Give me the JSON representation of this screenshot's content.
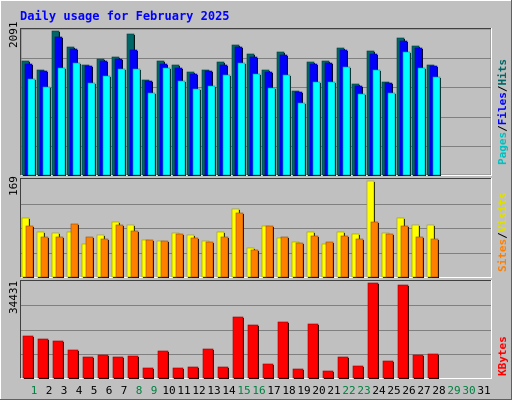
{
  "chart_data": [
    {
      "type": "bar",
      "title": "Daily usage for February 2025",
      "panel": "top",
      "ymax_label": "2091",
      "ylim": [
        0,
        2091
      ],
      "categories": [
        "1",
        "2",
        "3",
        "4",
        "5",
        "6",
        "7",
        "8",
        "9",
        "10",
        "11",
        "12",
        "13",
        "14",
        "15",
        "16",
        "17",
        "18",
        "19",
        "20",
        "21",
        "22",
        "23",
        "24",
        "25",
        "26",
        "27",
        "28",
        "29",
        "30",
        "31"
      ],
      "series": [
        {
          "name": "Hits",
          "color": "#006666",
          "values": [
            1655,
            1525,
            2091,
            1860,
            1600,
            1690,
            1710,
            2045,
            1380,
            1655,
            1600,
            1500,
            1530,
            1640,
            1890,
            1760,
            1520,
            1780,
            1215,
            1640,
            1655,
            1840,
            1320,
            1800,
            1350,
            1995,
            1880,
            1600,
            null,
            null,
            null
          ]
        },
        {
          "name": "Files",
          "color": "#0000ff",
          "values": [
            1610,
            1510,
            2000,
            1830,
            1580,
            1660,
            1680,
            1820,
            1360,
            1615,
            1560,
            1470,
            1510,
            1600,
            1860,
            1720,
            1490,
            1740,
            1200,
            1610,
            1630,
            1820,
            1290,
            1760,
            1340,
            1950,
            1840,
            1590,
            null,
            null,
            null
          ]
        },
        {
          "name": "Pages",
          "color": "#00ffff",
          "values": [
            1400,
            1280,
            1550,
            1620,
            1330,
            1440,
            1540,
            1540,
            1190,
            1560,
            1370,
            1250,
            1290,
            1450,
            1630,
            1460,
            1260,
            1450,
            1040,
            1350,
            1350,
            1570,
            1180,
            1530,
            1190,
            1780,
            1560,
            1420,
            null,
            null,
            null
          ]
        }
      ]
    },
    {
      "type": "bar",
      "panel": "middle",
      "ymax_label": "169",
      "ylim": [
        0,
        169
      ],
      "series": [
        {
          "name": "Visits",
          "color": "#ffff00",
          "values": [
            103,
            79,
            78,
            79,
            58,
            74,
            96,
            91,
            65,
            64,
            77,
            74,
            64,
            80,
            120,
            51,
            90,
            68,
            62,
            80,
            58,
            79,
            75,
            169,
            77,
            104,
            92,
            92,
            null,
            null,
            null
          ]
        },
        {
          "name": "Sites",
          "color": "#ff8000",
          "values": [
            90,
            70,
            70,
            94,
            71,
            67,
            91,
            81,
            66,
            63,
            76,
            68,
            62,
            70,
            113,
            47,
            90,
            70,
            60,
            73,
            62,
            72,
            67,
            97,
            75,
            90,
            70,
            67,
            null,
            null,
            null
          ]
        }
      ]
    },
    {
      "type": "bar",
      "panel": "bottom",
      "ymax_label": "34431",
      "ylim": [
        0,
        34431
      ],
      "series": [
        {
          "name": "KBytes",
          "color": "#ff0000",
          "values": [
            15200,
            14000,
            13500,
            10200,
            7500,
            8400,
            7600,
            7900,
            3700,
            9800,
            3700,
            4100,
            10500,
            4100,
            22000,
            19200,
            5100,
            20400,
            3400,
            19700,
            2600,
            7700,
            4200,
            34400,
            6300,
            33600,
            8300,
            8800,
            null,
            null,
            null
          ]
        }
      ]
    }
  ],
  "x_label_colors": {
    "weekday": "#000000",
    "weekend": "#008040"
  },
  "weekend_days": [
    1,
    8,
    9,
    15,
    16,
    22,
    23,
    29,
    30
  ],
  "right_legend": {
    "top": [
      {
        "text": "Pages",
        "color": "#00c0c0"
      },
      {
        "text": "/",
        "color": "#000000"
      },
      {
        "text": "Files",
        "color": "#0000ff"
      },
      {
        "text": "/",
        "color": "#000000"
      },
      {
        "text": "Hits",
        "color": "#006666"
      }
    ],
    "middle": [
      {
        "text": "Sites",
        "color": "#ff8000"
      },
      {
        "text": "/",
        "color": "#000000"
      },
      {
        "text": "Visits",
        "color": "#e0e000"
      }
    ],
    "bottom": [
      {
        "text": "KBytes",
        "color": "#ff0000"
      }
    ]
  },
  "colors": {
    "background": "#c0c0c0",
    "title": "#0000ff",
    "grid": "#808080"
  }
}
